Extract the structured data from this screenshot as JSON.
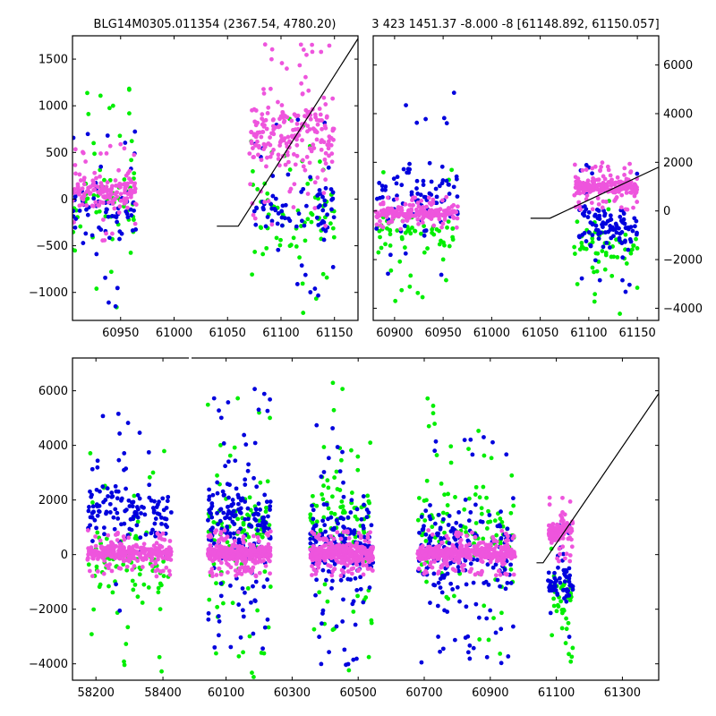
{
  "chart_data": [
    {
      "type": "scatter",
      "panel": "top-left",
      "title": "BLG14M0305.011354 (2367.54, 4780.20)",
      "xlim": [
        60905,
        61172
      ],
      "ylim": [
        -1300,
        1750
      ],
      "xticks": [
        60950,
        61000,
        61050,
        61100,
        61150
      ],
      "yticks": [
        -1000,
        -500,
        0,
        500,
        1000,
        1500
      ],
      "y_axis_side": "left",
      "series": [
        {
          "color": "#00ee00",
          "clusters": [
            {
              "x": [
                60905,
                60965
              ],
              "y": [
                -1250,
                1200
              ],
              "n": 70
            },
            {
              "x": [
                61072,
                61150
              ],
              "y": [
                -1250,
                900
              ],
              "n": 75
            }
          ]
        },
        {
          "color": "#0000dd",
          "clusters": [
            {
              "x": [
                60905,
                60965
              ],
              "y": [
                -1150,
                850
              ],
              "n": 70
            },
            {
              "x": [
                61075,
                61150
              ],
              "y": [
                -1100,
                900
              ],
              "n": 80
            }
          ]
        },
        {
          "color": "#ee55dd",
          "clusters": [
            {
              "x": [
                60905,
                60965
              ],
              "y": [
                -450,
                600
              ],
              "n": 150
            },
            {
              "x": [
                61070,
                61150
              ],
              "y": [
                -300,
                1700
              ],
              "n": 230
            }
          ]
        }
      ],
      "model_line": {
        "x": [
          61040,
          61060,
          61172
        ],
        "y": [
          -290,
          -290,
          1720
        ]
      }
    },
    {
      "type": "scatter",
      "panel": "top-right",
      "title": "3 423 1451.37 -8.000 -8 [61148.892, 61150.057]",
      "xlim": [
        60878,
        61172
      ],
      "ylim": [
        -4500,
        7200
      ],
      "xticks": [
        60900,
        60950,
        61000,
        61050,
        61100,
        61150
      ],
      "yticks": [
        -4000,
        -2000,
        0,
        2000,
        4000,
        6000
      ],
      "y_axis_side": "right",
      "series": [
        {
          "color": "#00ee00",
          "clusters": [
            {
              "x": [
                60880,
                60965
              ],
              "y": [
                -3800,
                1800
              ],
              "n": 70
            },
            {
              "x": [
                61085,
                61150
              ],
              "y": [
                -4300,
                1300
              ],
              "n": 60
            }
          ]
        },
        {
          "color": "#0000dd",
          "clusters": [
            {
              "x": [
                60880,
                60965
              ],
              "y": [
                -4200,
                5200
              ],
              "n": 90
            },
            {
              "x": [
                61090,
                61150
              ],
              "y": [
                -3500,
                2200
              ],
              "n": 110
            }
          ]
        },
        {
          "color": "#ee55dd",
          "clusters": [
            {
              "x": [
                60880,
                60965
              ],
              "y": [
                -800,
                600
              ],
              "n": 220
            },
            {
              "x": [
                61085,
                61150
              ],
              "y": [
                0,
                2000
              ],
              "n": 240
            }
          ]
        }
      ],
      "model_line": {
        "x": [
          61040,
          61060,
          61172
        ],
        "y": [
          -300,
          -300,
          1800
        ]
      }
    },
    {
      "type": "scatter",
      "panel": "bottom",
      "title": "",
      "segments": [
        {
          "xlim": [
            58130,
            58480
          ],
          "xticks": [
            58200,
            58400
          ]
        },
        {
          "xlim": [
            59990,
            61410
          ],
          "xticks": [
            60100,
            60300,
            60500,
            60700,
            60900,
            61100,
            61300
          ]
        }
      ],
      "ylim": [
        -4600,
        7200
      ],
      "yticks": [
        -4000,
        -2000,
        0,
        2000,
        4000,
        6000
      ],
      "series": [
        {
          "color": "#00ee00",
          "clusters": [
            {
              "x": [
                58175,
                58425
              ],
              "y": [
                -4400,
                3800
              ],
              "n": 90
            },
            {
              "x": [
                60045,
                60235
              ],
              "y": [
                -4500,
                6300
              ],
              "n": 110
            },
            {
              "x": [
                60355,
                60545
              ],
              "y": [
                -4500,
                6600
              ],
              "n": 110
            },
            {
              "x": [
                60680,
                60975
              ],
              "y": [
                -4400,
                5800
              ],
              "n": 130
            },
            {
              "x": [
                61075,
                61150
              ],
              "y": [
                -4400,
                1200
              ],
              "n": 40
            }
          ]
        },
        {
          "color": "#0000dd",
          "clusters": [
            {
              "x": [
                58175,
                58425
              ],
              "y": [
                -2500,
                5500
              ],
              "n": 140
            },
            {
              "x": [
                60045,
                60235
              ],
              "y": [
                -3500,
                6300
              ],
              "n": 200
            },
            {
              "x": [
                60355,
                60545
              ],
              "y": [
                -4200,
                4800
              ],
              "n": 200
            },
            {
              "x": [
                60680,
                60975
              ],
              "y": [
                -4200,
                4400
              ],
              "n": 220
            },
            {
              "x": [
                61075,
                61150
              ],
              "y": [
                -3500,
                1400
              ],
              "n": 60
            }
          ]
        },
        {
          "color": "#ee55dd",
          "clusters": [
            {
              "x": [
                58175,
                58425
              ],
              "y": [
                -800,
                900
              ],
              "n": 300
            },
            {
              "x": [
                60045,
                60235
              ],
              "y": [
                -800,
                900
              ],
              "n": 380
            },
            {
              "x": [
                60355,
                60545
              ],
              "y": [
                -800,
                900
              ],
              "n": 380
            },
            {
              "x": [
                60680,
                60975
              ],
              "y": [
                -800,
                900
              ],
              "n": 420
            },
            {
              "x": [
                61075,
                61150
              ],
              "y": [
                -300,
                2100
              ],
              "n": 110
            }
          ]
        }
      ],
      "model_line": {
        "x": [
          61040,
          61060,
          61410
        ],
        "y": [
          -300,
          -300,
          5900
        ]
      }
    }
  ]
}
